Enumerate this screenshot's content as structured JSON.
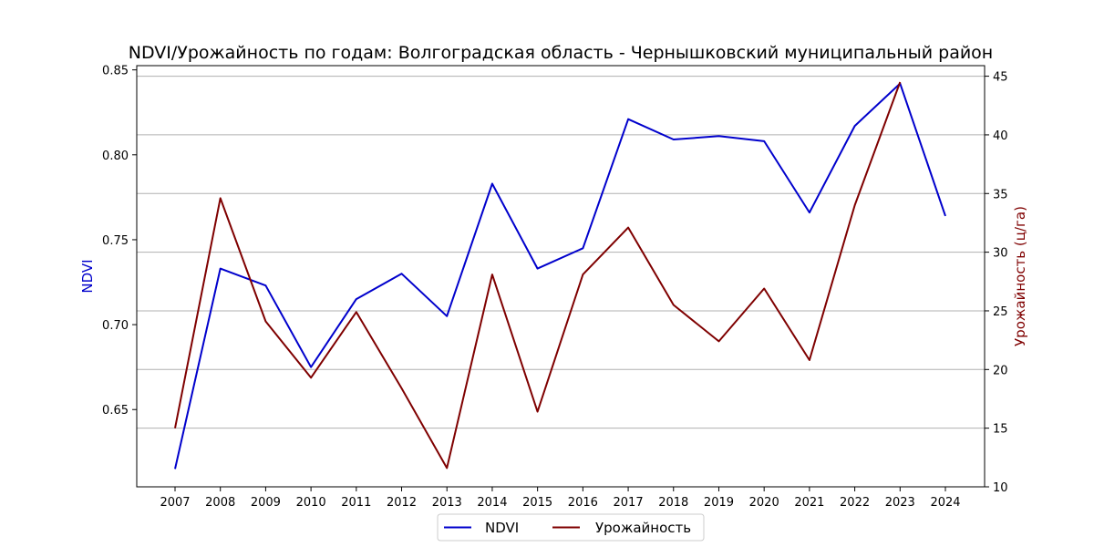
{
  "chart_data": {
    "type": "line",
    "title": "NDVI/Урожайность по годам: Волгоградская область - Чернышковский муниципальный район",
    "xlabel": "",
    "x": [
      2007,
      2008,
      2009,
      2010,
      2011,
      2012,
      2013,
      2014,
      2015,
      2016,
      2017,
      2018,
      2019,
      2020,
      2021,
      2022,
      2023,
      2024
    ],
    "xlim": [
      2007,
      2024
    ],
    "y_left": {
      "label": "NDVI",
      "color": "#0000cc",
      "ylim": [
        0.6045,
        0.8525
      ],
      "ticks": [
        "0.65",
        "0.70",
        "0.75",
        "0.80",
        "0.85"
      ],
      "tick_values": [
        0.65,
        0.7,
        0.75,
        0.8,
        0.85
      ]
    },
    "y_right": {
      "label": "Урожайность (ц/га)",
      "color": "#7f0000",
      "ylim": [
        10,
        45.9
      ],
      "ticks": [
        "10",
        "15",
        "20",
        "25",
        "30",
        "35",
        "40",
        "45"
      ],
      "tick_values": [
        10,
        15,
        20,
        25,
        30,
        35,
        40,
        45
      ]
    },
    "series": [
      {
        "name": "NDVI",
        "axis": "left",
        "color": "#0000cc",
        "values": [
          0.615,
          0.733,
          0.723,
          0.675,
          0.715,
          0.73,
          0.705,
          0.783,
          0.733,
          0.745,
          0.821,
          0.809,
          0.811,
          0.808,
          0.766,
          0.817,
          0.842,
          0.764
        ]
      },
      {
        "name": "Урожайность",
        "axis": "right",
        "color": "#7f0000",
        "values": [
          15.0,
          34.6,
          24.1,
          19.3,
          24.9,
          18.4,
          11.6,
          28.1,
          16.4,
          28.1,
          32.1,
          25.5,
          22.4,
          26.9,
          20.8,
          34.0,
          44.5,
          null
        ]
      }
    ],
    "grid": "horizontal",
    "legend_position": "bottom-center"
  }
}
